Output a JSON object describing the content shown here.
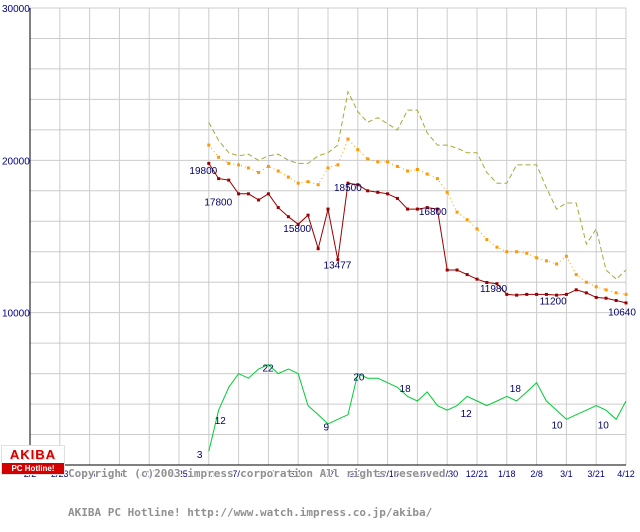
{
  "page": {
    "background": "#ffffff"
  },
  "footer": {
    "line1": "Copyright (c)2003 impress corporation All rights reserved.",
    "line2": "AKIBA PC Hotline! http://www.watch.impress.co.jp/akiba/"
  },
  "logo": {
    "line1": "AKIBA",
    "line2": "PC Hotline!"
  },
  "chart_data": {
    "type": "line",
    "title": "",
    "xlabel": "",
    "ylabel": "",
    "grid": true,
    "legend": "none",
    "axis_color": "#000000",
    "grid_color": "#cccccc",
    "tick_label_color": "#000080",
    "annotation_color": "#000066",
    "x_tick_labels": [
      "2/2",
      "2/23",
      "3/16",
      "4/6",
      "4/27",
      "5/25",
      "6/15",
      "7/6",
      "7/27",
      "8/16",
      "9/7",
      "9/28",
      "10/19",
      "11/9",
      "11/30",
      "12/21",
      "1/18",
      "2/8",
      "3/1",
      "3/21",
      "4/12"
    ],
    "y_ticks": [
      {
        "v": 10000,
        "label": "10000"
      },
      {
        "v": 20000,
        "label": "20000"
      },
      {
        "v": 30000,
        "label": "30000"
      }
    ],
    "price_axis": {
      "min": 0,
      "max": 30000,
      "grid_step": 2000
    },
    "count_axis": {
      "min": 0,
      "max": 100,
      "hidden": true
    },
    "series": [
      {
        "name": "highest-price",
        "color": "#a8a83a",
        "dash": "5,3",
        "marker": "none",
        "scale": "price",
        "points": [
          [
            6,
            22500
          ],
          [
            6.33,
            21300
          ],
          [
            6.67,
            20500
          ],
          [
            7,
            20300
          ],
          [
            7.33,
            20400
          ],
          [
            7.67,
            20000
          ],
          [
            8,
            20300
          ],
          [
            8.33,
            20400
          ],
          [
            8.67,
            20000
          ],
          [
            9,
            19800
          ],
          [
            9.33,
            19800
          ],
          [
            9.67,
            20300
          ],
          [
            10,
            20500
          ],
          [
            10.33,
            21000
          ],
          [
            10.67,
            24500
          ],
          [
            11,
            23200
          ],
          [
            11.33,
            22500
          ],
          [
            11.67,
            22800
          ],
          [
            12,
            22400
          ],
          [
            12.33,
            22000
          ],
          [
            12.67,
            23300
          ],
          [
            13,
            23300
          ],
          [
            13.33,
            21800
          ],
          [
            13.67,
            21000
          ],
          [
            14,
            21000
          ],
          [
            14.33,
            20800
          ],
          [
            14.67,
            20500
          ],
          [
            15,
            20500
          ],
          [
            15.33,
            19200
          ],
          [
            15.67,
            18500
          ],
          [
            16,
            18500
          ],
          [
            16.33,
            19700
          ],
          [
            16.67,
            19700
          ],
          [
            17,
            19700
          ],
          [
            17.33,
            18200
          ],
          [
            17.67,
            16800
          ],
          [
            18,
            17200
          ],
          [
            18.33,
            17200
          ],
          [
            18.67,
            14500
          ],
          [
            19,
            15500
          ],
          [
            19.33,
            12800
          ],
          [
            19.67,
            12200
          ],
          [
            20,
            12800
          ]
        ]
      },
      {
        "name": "average-price",
        "color": "#ff9900",
        "dash": "1,3",
        "marker": "square",
        "scale": "price",
        "points": [
          [
            6,
            21000
          ],
          [
            6.33,
            20200
          ],
          [
            6.67,
            19800
          ],
          [
            7,
            19700
          ],
          [
            7.33,
            19500
          ],
          [
            7.67,
            19200
          ],
          [
            8,
            19600
          ],
          [
            8.33,
            19300
          ],
          [
            8.67,
            18900
          ],
          [
            9,
            18500
          ],
          [
            9.33,
            18600
          ],
          [
            9.67,
            18400
          ],
          [
            10,
            19500
          ],
          [
            10.33,
            19700
          ],
          [
            10.67,
            21400
          ],
          [
            11,
            20700
          ],
          [
            11.33,
            20100
          ],
          [
            11.67,
            19900
          ],
          [
            12,
            19900
          ],
          [
            12.33,
            19600
          ],
          [
            12.67,
            19300
          ],
          [
            13,
            19400
          ],
          [
            13.33,
            19100
          ],
          [
            13.67,
            18800
          ],
          [
            14,
            17900
          ],
          [
            14.33,
            16600
          ],
          [
            14.67,
            16100
          ],
          [
            15,
            15500
          ],
          [
            15.33,
            14800
          ],
          [
            15.67,
            14300
          ],
          [
            16,
            14000
          ],
          [
            16.33,
            14000
          ],
          [
            16.67,
            13900
          ],
          [
            17,
            13600
          ],
          [
            17.33,
            13400
          ],
          [
            17.67,
            13200
          ],
          [
            18,
            13700
          ],
          [
            18.33,
            12500
          ],
          [
            18.67,
            12000
          ],
          [
            19,
            11700
          ],
          [
            19.33,
            11500
          ],
          [
            19.67,
            11300
          ],
          [
            20,
            11200
          ]
        ]
      },
      {
        "name": "lowest-price",
        "color": "#990000",
        "dash": "",
        "marker": "square",
        "scale": "price",
        "points": [
          [
            6,
            19800
          ],
          [
            6.33,
            18800
          ],
          [
            6.67,
            18700
          ],
          [
            7,
            17800
          ],
          [
            7.33,
            17800
          ],
          [
            7.67,
            17400
          ],
          [
            8,
            17800
          ],
          [
            8.33,
            16900
          ],
          [
            8.67,
            16300
          ],
          [
            9,
            15800
          ],
          [
            9.33,
            16400
          ],
          [
            9.67,
            14200
          ],
          [
            10,
            16800
          ],
          [
            10.33,
            13477
          ],
          [
            10.67,
            18500
          ],
          [
            11,
            18400
          ],
          [
            11.33,
            18000
          ],
          [
            11.67,
            17900
          ],
          [
            12,
            17800
          ],
          [
            12.33,
            17500
          ],
          [
            12.67,
            16800
          ],
          [
            13,
            16800
          ],
          [
            13.33,
            16900
          ],
          [
            13.67,
            16800
          ],
          [
            14,
            12800
          ],
          [
            14.33,
            12800
          ],
          [
            14.67,
            12500
          ],
          [
            15,
            12200
          ],
          [
            15.33,
            11980
          ],
          [
            15.67,
            11900
          ],
          [
            16,
            11200
          ],
          [
            16.33,
            11150
          ],
          [
            16.67,
            11200
          ],
          [
            17,
            11200
          ],
          [
            17.33,
            11200
          ],
          [
            17.67,
            11150
          ],
          [
            18,
            11200
          ],
          [
            18.33,
            11500
          ],
          [
            18.67,
            11300
          ],
          [
            19,
            11000
          ],
          [
            19.33,
            10950
          ],
          [
            19.67,
            10800
          ],
          [
            20,
            10640
          ]
        ]
      },
      {
        "name": "shop-count",
        "color": "#00cc33",
        "dash": "",
        "marker": "none",
        "scale": "count",
        "points": [
          [
            6,
            3
          ],
          [
            6.33,
            12
          ],
          [
            6.67,
            17
          ],
          [
            7,
            20
          ],
          [
            7.33,
            19
          ],
          [
            7.67,
            21
          ],
          [
            8,
            22
          ],
          [
            8.33,
            20
          ],
          [
            8.67,
            21
          ],
          [
            9,
            20
          ],
          [
            9.33,
            13
          ],
          [
            9.67,
            11
          ],
          [
            10,
            9
          ],
          [
            10.33,
            10
          ],
          [
            10.67,
            11
          ],
          [
            11,
            20
          ],
          [
            11.33,
            19
          ],
          [
            11.67,
            19
          ],
          [
            12,
            18
          ],
          [
            12.33,
            17
          ],
          [
            12.67,
            15
          ],
          [
            13,
            14
          ],
          [
            13.33,
            16
          ],
          [
            13.67,
            13
          ],
          [
            14,
            12
          ],
          [
            14.33,
            13
          ],
          [
            14.67,
            15
          ],
          [
            15,
            14
          ],
          [
            15.33,
            13
          ],
          [
            15.67,
            14
          ],
          [
            16,
            15
          ],
          [
            16.33,
            14
          ],
          [
            16.67,
            16
          ],
          [
            17,
            18
          ],
          [
            17.33,
            14
          ],
          [
            17.67,
            12
          ],
          [
            18,
            10
          ],
          [
            18.33,
            11
          ],
          [
            18.67,
            12
          ],
          [
            19,
            13
          ],
          [
            19.33,
            12
          ],
          [
            19.67,
            10
          ],
          [
            20,
            14
          ]
        ]
      }
    ],
    "annotations": [
      {
        "text": "19800",
        "x": 5.35,
        "v": 19100,
        "scale": "price"
      },
      {
        "text": "17800",
        "x": 5.85,
        "v": 17050,
        "scale": "price"
      },
      {
        "text": "15800",
        "x": 8.5,
        "v": 15300,
        "scale": "price"
      },
      {
        "text": "18500",
        "x": 10.2,
        "v": 18000,
        "scale": "price"
      },
      {
        "text": "13477",
        "x": 9.85,
        "v": 12900,
        "scale": "price"
      },
      {
        "text": "16800",
        "x": 13.05,
        "v": 16400,
        "scale": "price"
      },
      {
        "text": "11980",
        "x": 15.1,
        "v": 11350,
        "scale": "price"
      },
      {
        "text": "11200",
        "x": 17.1,
        "v": 10550,
        "scale": "price"
      },
      {
        "text": "10640",
        "x": 19.4,
        "v": 9800,
        "scale": "price"
      },
      {
        "text": "3",
        "x": 5.6,
        "v": 1.5,
        "scale": "count"
      },
      {
        "text": "12",
        "x": 6.2,
        "v": 9,
        "scale": "count"
      },
      {
        "text": "22",
        "x": 7.8,
        "v": 20.5,
        "scale": "count"
      },
      {
        "text": "9",
        "x": 9.85,
        "v": 7.5,
        "scale": "count"
      },
      {
        "text": "20",
        "x": 10.85,
        "v": 18.5,
        "scale": "count"
      },
      {
        "text": "18",
        "x": 12.4,
        "v": 16,
        "scale": "count"
      },
      {
        "text": "12",
        "x": 14.45,
        "v": 10.5,
        "scale": "count"
      },
      {
        "text": "18",
        "x": 16.1,
        "v": 16,
        "scale": "count"
      },
      {
        "text": "10",
        "x": 17.5,
        "v": 8,
        "scale": "count"
      },
      {
        "text": "10",
        "x": 19.05,
        "v": 8,
        "scale": "count"
      }
    ]
  }
}
